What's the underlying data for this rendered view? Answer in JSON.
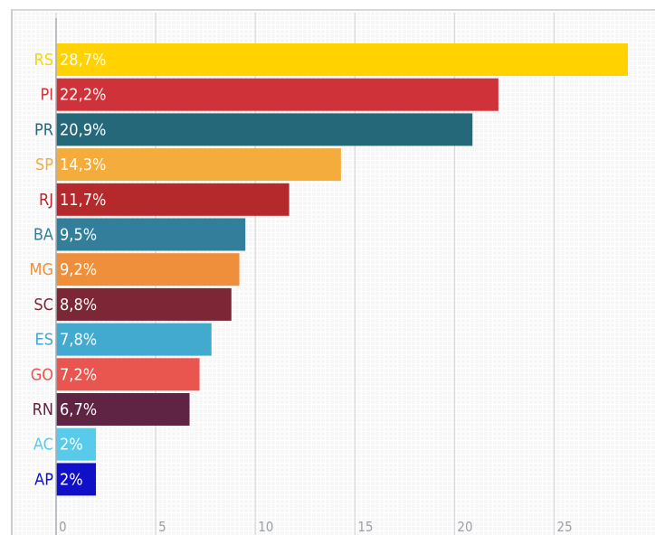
{
  "chart_data": {
    "type": "bar",
    "orientation": "horizontal",
    "xlim": [
      0,
      28.7
    ],
    "x_ticks": [
      0,
      5,
      10,
      15,
      20,
      25
    ],
    "grid": "vertical",
    "categories": [
      "RS",
      "PI",
      "PR",
      "SP",
      "RJ",
      "BA",
      "MG",
      "SC",
      "ES",
      "GO",
      "RN",
      "AC",
      "AP"
    ],
    "values": [
      28.7,
      22.2,
      20.9,
      14.3,
      11.7,
      9.5,
      9.2,
      8.8,
      7.8,
      7.2,
      6.7,
      2,
      2
    ],
    "data_labels": [
      "28,7%",
      "22,2%",
      "20,9%",
      "14,3%",
      "11,7%",
      "9,5%",
      "9,2%",
      "8,8%",
      "7,8%",
      "7,2%",
      "6,7%",
      "2%",
      "2%"
    ],
    "colors": [
      "#ffd200",
      "#cf3238",
      "#24687a",
      "#f4ad3c",
      "#b5282b",
      "#327e9b",
      "#f08f3b",
      "#7c2636",
      "#42aacf",
      "#e9564f",
      "#5f2443",
      "#58cbeb",
      "#1010c8"
    ],
    "title": "",
    "xlabel": "",
    "ylabel": ""
  }
}
